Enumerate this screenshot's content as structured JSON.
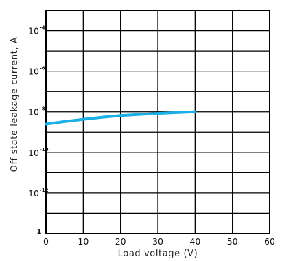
{
  "chart_data": {
    "type": "line",
    "xlabel": "Load voltage (V)",
    "ylabel": "Off state leakage current, A",
    "xlim": [
      0,
      60
    ],
    "x_ticks": [
      "0",
      "10",
      "20",
      "30",
      "40",
      "50",
      "60"
    ],
    "y_scale": "log",
    "ylim_log10": [
      -14,
      -3
    ],
    "y_ticks": [
      {
        "log10": -4,
        "base": "10",
        "exp": "-4"
      },
      {
        "log10": -6,
        "base": "10",
        "exp": "-6"
      },
      {
        "log10": -8,
        "base": "10",
        "exp": "-8"
      },
      {
        "log10": -10,
        "base": "10",
        "exp": "-10"
      },
      {
        "log10": -12,
        "base": "10",
        "exp": "-12"
      }
    ],
    "y_bottom_label": "1",
    "grid": true,
    "line_color": "#1ab0e6",
    "series": [
      {
        "x": [
          0,
          5,
          10,
          15,
          20,
          25,
          30,
          35,
          40
        ],
        "log10_y": [
          -8.6,
          -8.48,
          -8.37,
          -8.27,
          -8.19,
          -8.13,
          -8.08,
          -8.04,
          -8.0
        ]
      }
    ]
  }
}
